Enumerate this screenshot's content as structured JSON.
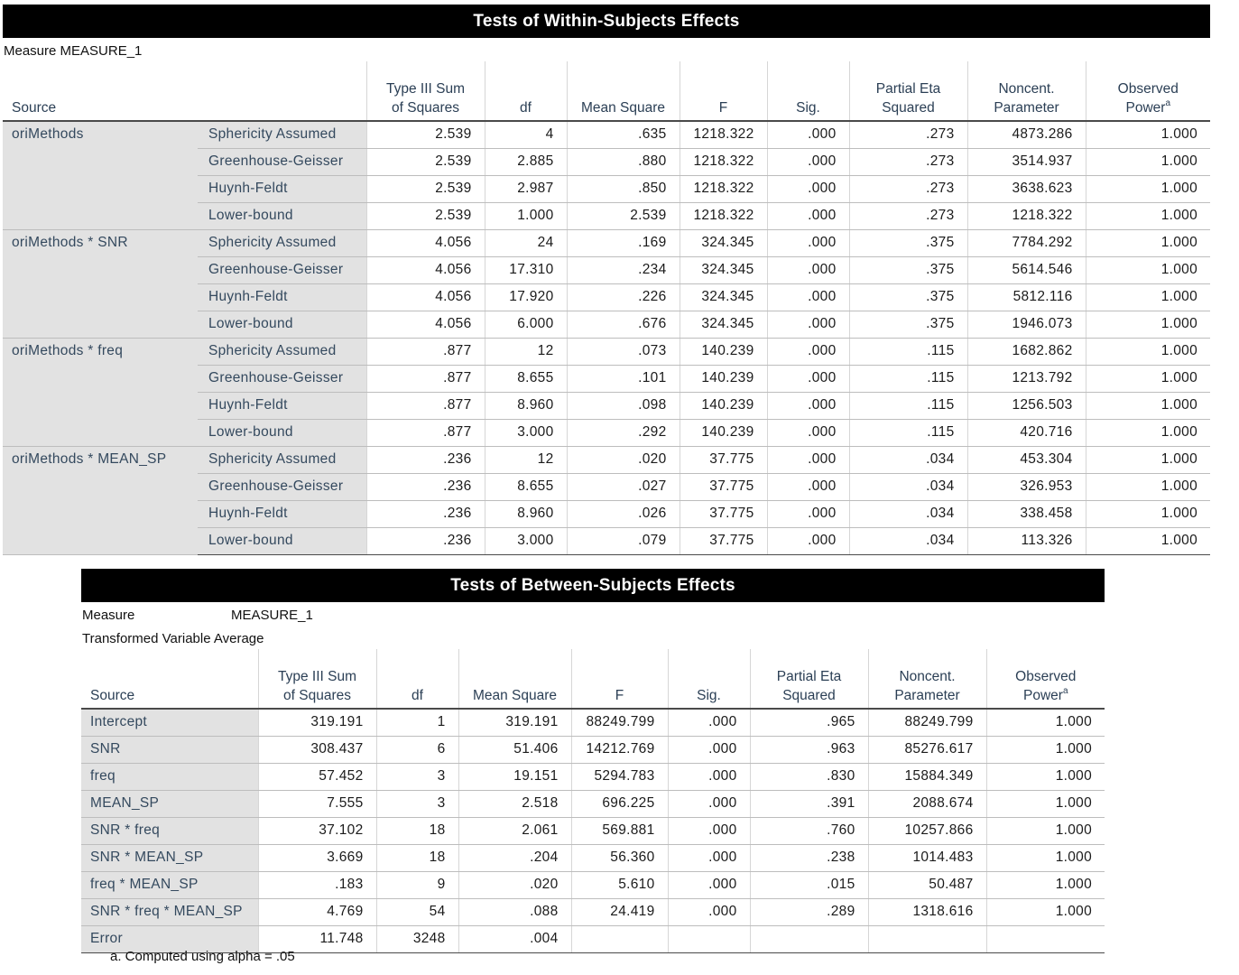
{
  "within": {
    "title": "Tests of Within-Subjects Effects",
    "measure_label": "Measure",
    "measure_value": "MEASURE_1",
    "headers": {
      "source": "Source",
      "ss_line1": "Type III Sum",
      "ss_line2": "of Squares",
      "df": "df",
      "ms": "Mean Square",
      "f": "F",
      "sig": "Sig.",
      "eta_line1": "Partial Eta",
      "eta_line2": "Squared",
      "noncent_line1": "Noncent.",
      "noncent_line2": "Parameter",
      "power_line1": "Observed",
      "power_line2": "Power",
      "power_footnote_mark": "a"
    },
    "groups": [
      {
        "source": "oriMethods",
        "rows": [
          {
            "correction": "Sphericity Assumed",
            "ss": "2.539",
            "df": "4",
            "ms": ".635",
            "f": "1218.322",
            "sig": ".000",
            "eta": ".273",
            "noncent": "4873.286",
            "power": "1.000"
          },
          {
            "correction": "Greenhouse-Geisser",
            "ss": "2.539",
            "df": "2.885",
            "ms": ".880",
            "f": "1218.322",
            "sig": ".000",
            "eta": ".273",
            "noncent": "3514.937",
            "power": "1.000"
          },
          {
            "correction": "Huynh-Feldt",
            "ss": "2.539",
            "df": "2.987",
            "ms": ".850",
            "f": "1218.322",
            "sig": ".000",
            "eta": ".273",
            "noncent": "3638.623",
            "power": "1.000"
          },
          {
            "correction": "Lower-bound",
            "ss": "2.539",
            "df": "1.000",
            "ms": "2.539",
            "f": "1218.322",
            "sig": ".000",
            "eta": ".273",
            "noncent": "1218.322",
            "power": "1.000"
          }
        ]
      },
      {
        "source": "oriMethods * SNR",
        "rows": [
          {
            "correction": "Sphericity Assumed",
            "ss": "4.056",
            "df": "24",
            "ms": ".169",
            "f": "324.345",
            "sig": ".000",
            "eta": ".375",
            "noncent": "7784.292",
            "power": "1.000"
          },
          {
            "correction": "Greenhouse-Geisser",
            "ss": "4.056",
            "df": "17.310",
            "ms": ".234",
            "f": "324.345",
            "sig": ".000",
            "eta": ".375",
            "noncent": "5614.546",
            "power": "1.000"
          },
          {
            "correction": "Huynh-Feldt",
            "ss": "4.056",
            "df": "17.920",
            "ms": ".226",
            "f": "324.345",
            "sig": ".000",
            "eta": ".375",
            "noncent": "5812.116",
            "power": "1.000"
          },
          {
            "correction": "Lower-bound",
            "ss": "4.056",
            "df": "6.000",
            "ms": ".676",
            "f": "324.345",
            "sig": ".000",
            "eta": ".375",
            "noncent": "1946.073",
            "power": "1.000"
          }
        ]
      },
      {
        "source": "oriMethods * freq",
        "rows": [
          {
            "correction": "Sphericity Assumed",
            "ss": ".877",
            "df": "12",
            "ms": ".073",
            "f": "140.239",
            "sig": ".000",
            "eta": ".115",
            "noncent": "1682.862",
            "power": "1.000"
          },
          {
            "correction": "Greenhouse-Geisser",
            "ss": ".877",
            "df": "8.655",
            "ms": ".101",
            "f": "140.239",
            "sig": ".000",
            "eta": ".115",
            "noncent": "1213.792",
            "power": "1.000"
          },
          {
            "correction": "Huynh-Feldt",
            "ss": ".877",
            "df": "8.960",
            "ms": ".098",
            "f": "140.239",
            "sig": ".000",
            "eta": ".115",
            "noncent": "1256.503",
            "power": "1.000"
          },
          {
            "correction": "Lower-bound",
            "ss": ".877",
            "df": "3.000",
            "ms": ".292",
            "f": "140.239",
            "sig": ".000",
            "eta": ".115",
            "noncent": "420.716",
            "power": "1.000"
          }
        ]
      },
      {
        "source": "oriMethods * MEAN_SP",
        "rows": [
          {
            "correction": "Sphericity Assumed",
            "ss": ".236",
            "df": "12",
            "ms": ".020",
            "f": "37.775",
            "sig": ".000",
            "eta": ".034",
            "noncent": "453.304",
            "power": "1.000"
          },
          {
            "correction": "Greenhouse-Geisser",
            "ss": ".236",
            "df": "8.655",
            "ms": ".027",
            "f": "37.775",
            "sig": ".000",
            "eta": ".034",
            "noncent": "326.953",
            "power": "1.000"
          },
          {
            "correction": "Huynh-Feldt",
            "ss": ".236",
            "df": "8.960",
            "ms": ".026",
            "f": "37.775",
            "sig": ".000",
            "eta": ".034",
            "noncent": "338.458",
            "power": "1.000"
          },
          {
            "correction": "Lower-bound",
            "ss": ".236",
            "df": "3.000",
            "ms": ".079",
            "f": "37.775",
            "sig": ".000",
            "eta": ".034",
            "noncent": "113.326",
            "power": "1.000"
          }
        ]
      }
    ]
  },
  "between": {
    "title": "Tests of Between-Subjects Effects",
    "measure_label": "Measure",
    "measure_value": "MEASURE_1",
    "transformed_label": "Transformed Variable Average",
    "headers": {
      "source": "Source",
      "ss_line1": "Type III Sum",
      "ss_line2": "of Squares",
      "df": "df",
      "ms": "Mean Square",
      "f": "F",
      "sig": "Sig.",
      "eta_line1": "Partial Eta",
      "eta_line2": "Squared",
      "noncent_line1": "Noncent.",
      "noncent_line2": "Parameter",
      "power_line1": "Observed",
      "power_line2": "Power",
      "power_footnote_mark": "a"
    },
    "rows": [
      {
        "source": "Intercept",
        "ss": "319.191",
        "df": "1",
        "ms": "319.191",
        "f": "88249.799",
        "sig": ".000",
        "eta": ".965",
        "noncent": "88249.799",
        "power": "1.000"
      },
      {
        "source": "SNR",
        "ss": "308.437",
        "df": "6",
        "ms": "51.406",
        "f": "14212.769",
        "sig": ".000",
        "eta": ".963",
        "noncent": "85276.617",
        "power": "1.000"
      },
      {
        "source": "freq",
        "ss": "57.452",
        "df": "3",
        "ms": "19.151",
        "f": "5294.783",
        "sig": ".000",
        "eta": ".830",
        "noncent": "15884.349",
        "power": "1.000"
      },
      {
        "source": "MEAN_SP",
        "ss": "7.555",
        "df": "3",
        "ms": "2.518",
        "f": "696.225",
        "sig": ".000",
        "eta": ".391",
        "noncent": "2088.674",
        "power": "1.000"
      },
      {
        "source": "SNR * freq",
        "ss": "37.102",
        "df": "18",
        "ms": "2.061",
        "f": "569.881",
        "sig": ".000",
        "eta": ".760",
        "noncent": "10257.866",
        "power": "1.000"
      },
      {
        "source": "SNR * MEAN_SP",
        "ss": "3.669",
        "df": "18",
        "ms": ".204",
        "f": "56.360",
        "sig": ".000",
        "eta": ".238",
        "noncent": "1014.483",
        "power": "1.000"
      },
      {
        "source": "freq * MEAN_SP",
        "ss": ".183",
        "df": "9",
        "ms": ".020",
        "f": "5.610",
        "sig": ".000",
        "eta": ".015",
        "noncent": "50.487",
        "power": "1.000"
      },
      {
        "source": "SNR * freq * MEAN_SP",
        "ss": "4.769",
        "df": "54",
        "ms": ".088",
        "f": "24.419",
        "sig": ".000",
        "eta": ".289",
        "noncent": "1318.616",
        "power": "1.000"
      },
      {
        "source": "Error",
        "ss": "11.748",
        "df": "3248",
        "ms": ".004",
        "f": "",
        "sig": "",
        "eta": "",
        "noncent": "",
        "power": ""
      }
    ]
  },
  "footnote": "a. Computed using alpha = .05"
}
